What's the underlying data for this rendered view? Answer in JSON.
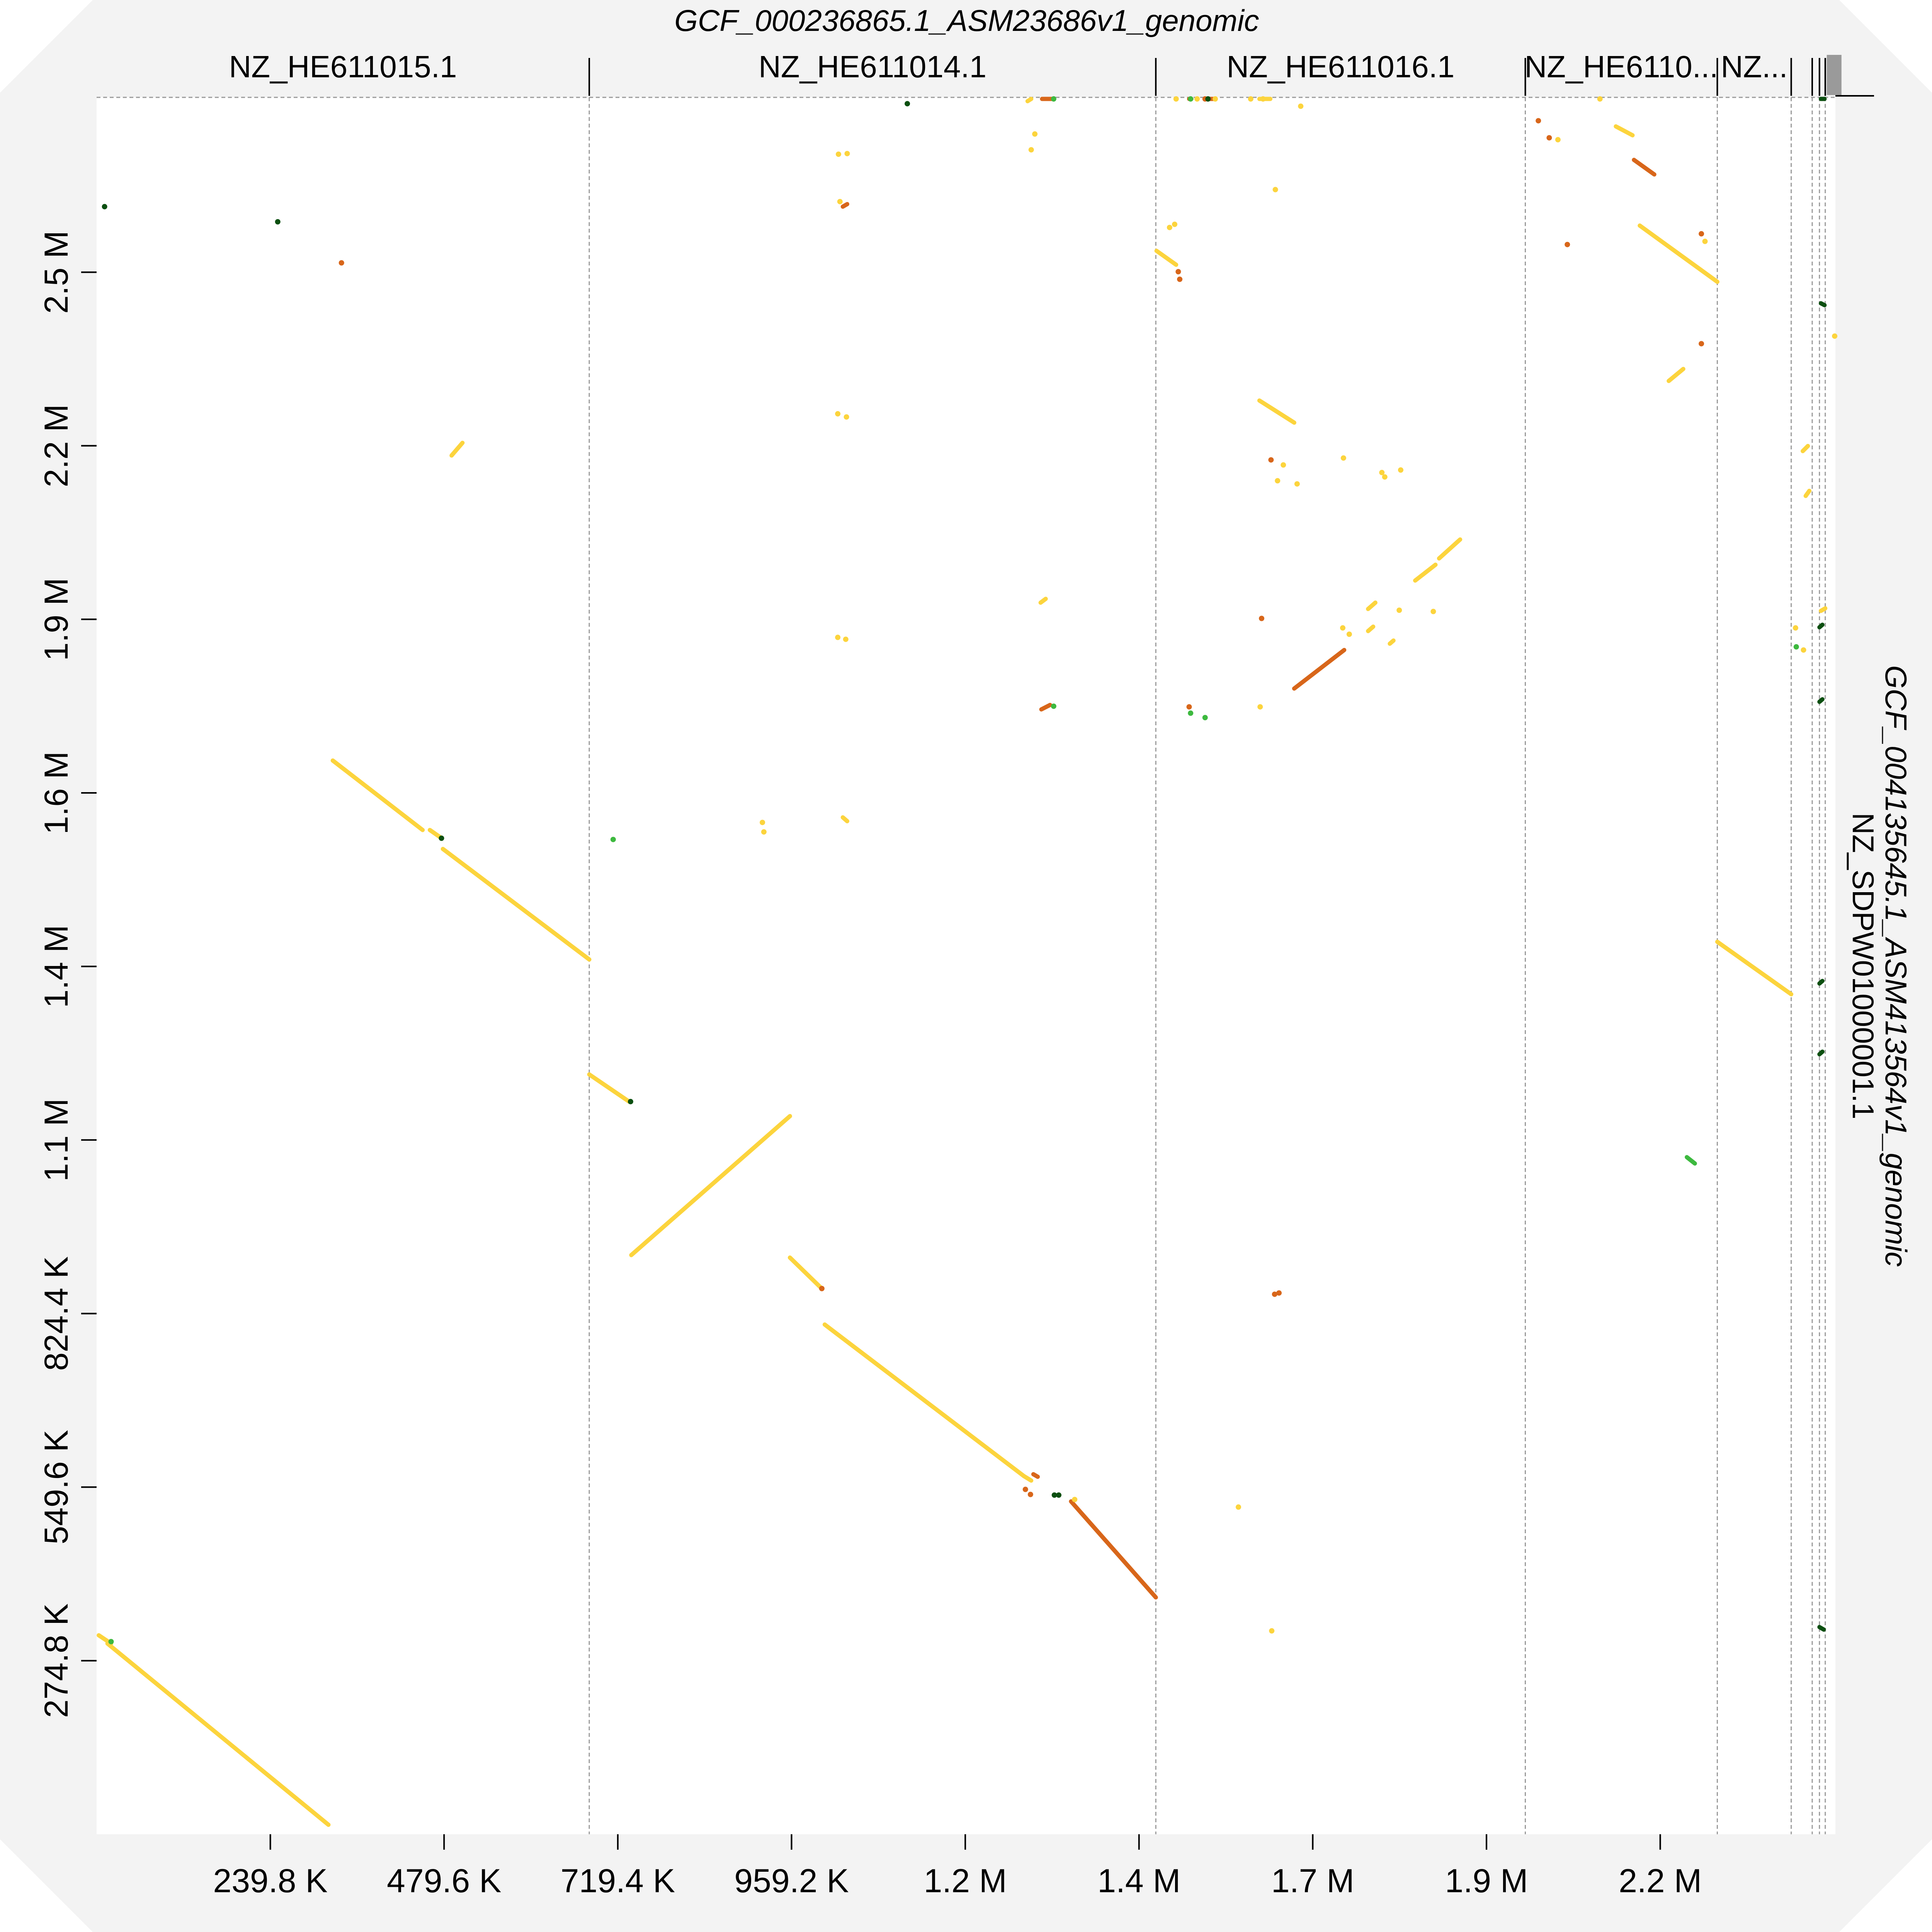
{
  "chart_data": {
    "type": "scatter",
    "subtype": "dot-plot",
    "x_title": "GCF_000236865.1_ASM23686v1_genomic",
    "y_title": "GCF_004135645.1_ASM413564v1_genomic",
    "y_contig_label": "NZ_SDPW01000001.1",
    "x_tick_labels": [
      "239.8 K",
      "479.6 K",
      "719.4 K",
      "959.2 K",
      "1.2 M",
      "1.4 M",
      "1.7 M",
      "1.9 M",
      "2.2 M"
    ],
    "x_ticks": [
      239800,
      479600,
      719400,
      959200,
      1199000,
      1438800,
      1678600,
      1918400,
      2158200
    ],
    "y_tick_labels": [
      "274.8 K",
      "549.6 K",
      "824.4 K",
      "1.1 M",
      "1.4 M",
      "1.6 M",
      "1.9 M",
      "2.2 M",
      "2.5 M"
    ],
    "y_ticks": [
      274800,
      549600,
      824400,
      1099200,
      1374000,
      1648800,
      1923600,
      2198400,
      2473200
    ],
    "xlim": [
      0,
      2400000
    ],
    "ylim": [
      0,
      2750000
    ],
    "x_contigs": [
      {
        "label": "NZ_HE611015.1",
        "start": 0,
        "end": 680000
      },
      {
        "label": "NZ_HE611014.1",
        "start": 680000,
        "end": 1462000
      },
      {
        "label": "NZ_HE611016.1",
        "start": 1462000,
        "end": 1972000
      },
      {
        "label": "NZ_HE6110...",
        "start": 1972000,
        "end": 2237000
      },
      {
        "label": "NZ...",
        "start": 2237000,
        "end": 2339000
      },
      {
        "label": "",
        "start": 2339000,
        "end": 2368000
      },
      {
        "label": "",
        "start": 2368000,
        "end": 2378000
      },
      {
        "label": "",
        "start": 2378000,
        "end": 2386000
      },
      {
        "label": "",
        "start": 2386000,
        "end": 2400000
      }
    ],
    "identity_colors": {
      "high": "#fcd43d",
      "mid": "#d8661a",
      "low": "#3db93f",
      "vlow": "#0b4f10"
    },
    "segments": [
      {
        "x1": 15000,
        "y1": 302000,
        "x2": 320000,
        "y2": 15000,
        "c": "high"
      },
      {
        "x1": 3000,
        "y1": 315000,
        "x2": 20000,
        "y2": 302000,
        "c": "high"
      },
      {
        "x1": 326000,
        "y1": 1700000,
        "x2": 450000,
        "y2": 1590000,
        "c": "high"
      },
      {
        "x1": 460000,
        "y1": 1590000,
        "x2": 475000,
        "y2": 1578000,
        "c": "high"
      },
      {
        "x1": 478000,
        "y1": 1560000,
        "x2": 680000,
        "y2": 1385000,
        "c": "high"
      },
      {
        "x1": 680000,
        "y1": 1203000,
        "x2": 735000,
        "y2": 1160000,
        "c": "high"
      },
      {
        "x1": 738000,
        "y1": 917000,
        "x2": 957000,
        "y2": 1137000,
        "c": "high"
      },
      {
        "x1": 957000,
        "y1": 913000,
        "x2": 1000000,
        "y2": 865000,
        "c": "high"
      },
      {
        "x1": 1005000,
        "y1": 807000,
        "x2": 1280000,
        "y2": 567000,
        "c": "high"
      },
      {
        "x1": 1280000,
        "y1": 567000,
        "x2": 1290000,
        "y2": 560000,
        "c": "high"
      },
      {
        "x1": 1345000,
        "y1": 527000,
        "x2": 1462000,
        "y2": 375000,
        "c": "mid"
      },
      {
        "x1": 490000,
        "y1": 2183000,
        "x2": 505000,
        "y2": 2203000,
        "c": "high"
      },
      {
        "x1": 1653000,
        "y1": 1814000,
        "x2": 1722000,
        "y2": 1875000,
        "c": "mid"
      },
      {
        "x1": 1605000,
        "y1": 2270000,
        "x2": 1653000,
        "y2": 2235000,
        "c": "high"
      },
      {
        "x1": 1463000,
        "y1": 2507000,
        "x2": 1490000,
        "y2": 2485000,
        "c": "high"
      },
      {
        "x1": 1820000,
        "y1": 1985000,
        "x2": 1848000,
        "y2": 2010000,
        "c": "high"
      },
      {
        "x1": 1853000,
        "y1": 2020000,
        "x2": 1882000,
        "y2": 2050000,
        "c": "high"
      },
      {
        "x1": 1755000,
        "y1": 1940000,
        "x2": 1765000,
        "y2": 1950000,
        "c": "high"
      },
      {
        "x1": 2130000,
        "y1": 2547000,
        "x2": 2237000,
        "y2": 2458000,
        "c": "high"
      },
      {
        "x1": 2097000,
        "y1": 2704000,
        "x2": 2120000,
        "y2": 2690000,
        "c": "high"
      },
      {
        "x1": 2122000,
        "y1": 2651000,
        "x2": 2150000,
        "y2": 2628000,
        "c": "mid"
      },
      {
        "x1": 2170000,
        "y1": 2301000,
        "x2": 2190000,
        "y2": 2320000,
        "c": "high"
      },
      {
        "x1": 2237000,
        "y1": 1413000,
        "x2": 2339000,
        "y2": 1330000,
        "c": "high"
      },
      {
        "x1": 1605000,
        "y1": 2950000,
        "x2": 1620000,
        "y2": 2935000,
        "c": "high"
      },
      {
        "x1": 1305000,
        "y1": 2770000,
        "x2": 1318000,
        "y2": 2778000,
        "c": "mid"
      },
      {
        "x1": 1304000,
        "y1": 1781000,
        "x2": 1316000,
        "y2": 1788000,
        "c": "mid"
      },
      {
        "x1": 1303000,
        "y1": 1950000,
        "x2": 1310000,
        "y2": 1956000,
        "c": "high"
      },
      {
        "x1": 1285000,
        "y1": 2744000,
        "x2": 1290000,
        "y2": 2752000,
        "c": "high"
      },
      {
        "x1": 1030000,
        "y1": 1610000,
        "x2": 1036000,
        "y2": 1604000,
        "c": "high"
      },
      {
        "x1": 1030000,
        "y1": 2577000,
        "x2": 1036000,
        "y2": 2581000,
        "c": "mid"
      },
      {
        "x1": 1509000,
        "y1": 2783000,
        "x2": 1511000,
        "y2": 2790000,
        "c": "vlow"
      },
      {
        "x1": 1508000,
        "y1": 2830000,
        "x2": 1511000,
        "y2": 2834000,
        "c": "mid"
      },
      {
        "x1": 1534000,
        "y1": 2795000,
        "x2": 1544000,
        "y2": 2800000,
        "c": "vlow"
      },
      {
        "x1": 1538000,
        "y1": 2808000,
        "x2": 1544000,
        "y2": 2812000,
        "c": "mid"
      },
      {
        "x1": 1755000,
        "y1": 1905000,
        "x2": 1762000,
        "y2": 1912000,
        "c": "high"
      },
      {
        "x1": 1785000,
        "y1": 1885000,
        "x2": 1790000,
        "y2": 1890000,
        "c": "high"
      },
      {
        "x1": 2380000,
        "y1": 2818000,
        "x2": 2385000,
        "y2": 2822000,
        "c": "vlow"
      },
      {
        "x1": 2380000,
        "y1": 2424000,
        "x2": 2385000,
        "y2": 2421000,
        "c": "vlow"
      },
      {
        "x1": 2378000,
        "y1": 1911000,
        "x2": 2382000,
        "y2": 1915000,
        "c": "vlow"
      },
      {
        "x1": 2378000,
        "y1": 1793000,
        "x2": 2382000,
        "y2": 1797000,
        "c": "vlow"
      },
      {
        "x1": 2378000,
        "y1": 1347000,
        "x2": 2382000,
        "y2": 1351000,
        "c": "vlow"
      },
      {
        "x1": 2378000,
        "y1": 1235000,
        "x2": 2382000,
        "y2": 1239000,
        "c": "vlow"
      },
      {
        "x1": 2378000,
        "y1": 328000,
        "x2": 2384000,
        "y2": 324000,
        "c": "vlow"
      },
      {
        "x1": 2355000,
        "y1": 2190000,
        "x2": 2362000,
        "y2": 2198000,
        "c": "high"
      },
      {
        "x1": 2359000,
        "y1": 2119000,
        "x2": 2364000,
        "y2": 2127000,
        "c": "high"
      },
      {
        "x1": 2380000,
        "y1": 1937000,
        "x2": 2386000,
        "y2": 1941000,
        "c": "high"
      },
      {
        "x1": 2195000,
        "y1": 1072000,
        "x2": 2206000,
        "y2": 1062000,
        "c": "low"
      },
      {
        "x1": 1293000,
        "y1": 570000,
        "x2": 1299000,
        "y2": 566000,
        "c": "mid"
      }
    ],
    "dots": [
      {
        "x": 11000,
        "y": 2577000,
        "c": "vlow"
      },
      {
        "x": 250000,
        "y": 2553000,
        "c": "vlow"
      },
      {
        "x": 338000,
        "y": 2488000,
        "c": "mid"
      },
      {
        "x": 476000,
        "y": 1577000,
        "c": "vlow"
      },
      {
        "x": 20000,
        "y": 305000,
        "c": "low"
      },
      {
        "x": 713000,
        "y": 1575000,
        "c": "low"
      },
      {
        "x": 737000,
        "y": 1160000,
        "c": "vlow"
      },
      {
        "x": 1001000,
        "y": 864000,
        "c": "mid"
      },
      {
        "x": 1119000,
        "y": 2740000,
        "c": "vlow"
      },
      {
        "x": 1321000,
        "y": 2778000,
        "c": "low"
      },
      {
        "x": 1321000,
        "y": 1786000,
        "c": "low"
      },
      {
        "x": 1322000,
        "y": 537000,
        "c": "vlow"
      },
      {
        "x": 1328000,
        "y": 537000,
        "c": "vlow"
      },
      {
        "x": 1350000,
        "y": 530000,
        "c": "high"
      },
      {
        "x": 919000,
        "y": 1602000,
        "c": "high"
      },
      {
        "x": 921000,
        "y": 1587000,
        "c": "high"
      },
      {
        "x": 1024000,
        "y": 2660000,
        "c": "high"
      },
      {
        "x": 1036000,
        "y": 2661000,
        "c": "high"
      },
      {
        "x": 1023000,
        "y": 2249000,
        "c": "high"
      },
      {
        "x": 1035000,
        "y": 2244000,
        "c": "high"
      },
      {
        "x": 1023000,
        "y": 1895000,
        "c": "high"
      },
      {
        "x": 1034000,
        "y": 1892000,
        "c": "high"
      },
      {
        "x": 1026000,
        "y": 2585000,
        "c": "high"
      },
      {
        "x": 1290000,
        "y": 2667000,
        "c": "high"
      },
      {
        "x": 1295000,
        "y": 2692000,
        "c": "high"
      },
      {
        "x": 1282000,
        "y": 546000,
        "c": "mid"
      },
      {
        "x": 1289000,
        "y": 538000,
        "c": "mid"
      },
      {
        "x": 1530000,
        "y": 2805000,
        "c": "mid"
      },
      {
        "x": 1534000,
        "y": 2823000,
        "c": "vlow"
      },
      {
        "x": 1510000,
        "y": 2838000,
        "c": "low"
      },
      {
        "x": 1519000,
        "y": 2830000,
        "c": "high"
      },
      {
        "x": 1490000,
        "y": 2778000,
        "c": "high"
      },
      {
        "x": 1481000,
        "y": 2544000,
        "c": "high"
      },
      {
        "x": 1488000,
        "y": 2549000,
        "c": "high"
      },
      {
        "x": 1493000,
        "y": 2474000,
        "c": "mid"
      },
      {
        "x": 1495000,
        "y": 2462000,
        "c": "mid"
      },
      {
        "x": 1510000,
        "y": 1775000,
        "c": "low"
      },
      {
        "x": 1508000,
        "y": 1785000,
        "c": "mid"
      },
      {
        "x": 1530000,
        "y": 1768000,
        "c": "low"
      },
      {
        "x": 1544000,
        "y": 2769000,
        "c": "high"
      },
      {
        "x": 1593000,
        "y": 2767000,
        "c": "high"
      },
      {
        "x": 1610000,
        "y": 2834000,
        "c": "high"
      },
      {
        "x": 1627000,
        "y": 2604000,
        "c": "high"
      },
      {
        "x": 1662000,
        "y": 2736000,
        "c": "high"
      },
      {
        "x": 1608000,
        "y": 1925000,
        "c": "mid"
      },
      {
        "x": 1606000,
        "y": 1785000,
        "c": "high"
      },
      {
        "x": 1621000,
        "y": 2176000,
        "c": "mid"
      },
      {
        "x": 1638000,
        "y": 2168000,
        "c": "high"
      },
      {
        "x": 1630000,
        "y": 2143000,
        "c": "high"
      },
      {
        "x": 1657000,
        "y": 2138000,
        "c": "high"
      },
      {
        "x": 1721000,
        "y": 2179000,
        "c": "high"
      },
      {
        "x": 1774000,
        "y": 2156000,
        "c": "high"
      },
      {
        "x": 1778000,
        "y": 2149000,
        "c": "high"
      },
      {
        "x": 1800000,
        "y": 2160000,
        "c": "high"
      },
      {
        "x": 1798000,
        "y": 1938000,
        "c": "high"
      },
      {
        "x": 1845000,
        "y": 1936000,
        "c": "high"
      },
      {
        "x": 1720000,
        "y": 1910000,
        "c": "high"
      },
      {
        "x": 1729000,
        "y": 1900000,
        "c": "high"
      },
      {
        "x": 1632000,
        "y": 857000,
        "c": "mid"
      },
      {
        "x": 1626000,
        "y": 855000,
        "c": "mid"
      },
      {
        "x": 1576000,
        "y": 518000,
        "c": "high"
      },
      {
        "x": 1622000,
        "y": 322000,
        "c": "high"
      },
      {
        "x": 1990000,
        "y": 2713000,
        "c": "mid"
      },
      {
        "x": 2005000,
        "y": 2686000,
        "c": "mid"
      },
      {
        "x": 2017000,
        "y": 2683000,
        "c": "high"
      },
      {
        "x": 2030000,
        "y": 2517000,
        "c": "mid"
      },
      {
        "x": 2075000,
        "y": 2764000,
        "c": "high"
      },
      {
        "x": 2215000,
        "y": 2360000,
        "c": "mid"
      },
      {
        "x": 2215000,
        "y": 2534000,
        "c": "mid"
      },
      {
        "x": 2220000,
        "y": 2522000,
        "c": "high"
      },
      {
        "x": 2345000,
        "y": 1910000,
        "c": "high"
      },
      {
        "x": 2346000,
        "y": 1880000,
        "c": "low"
      },
      {
        "x": 2356000,
        "y": 1875000,
        "c": "high"
      },
      {
        "x": 2399000,
        "y": 2372000,
        "c": "high"
      }
    ]
  }
}
